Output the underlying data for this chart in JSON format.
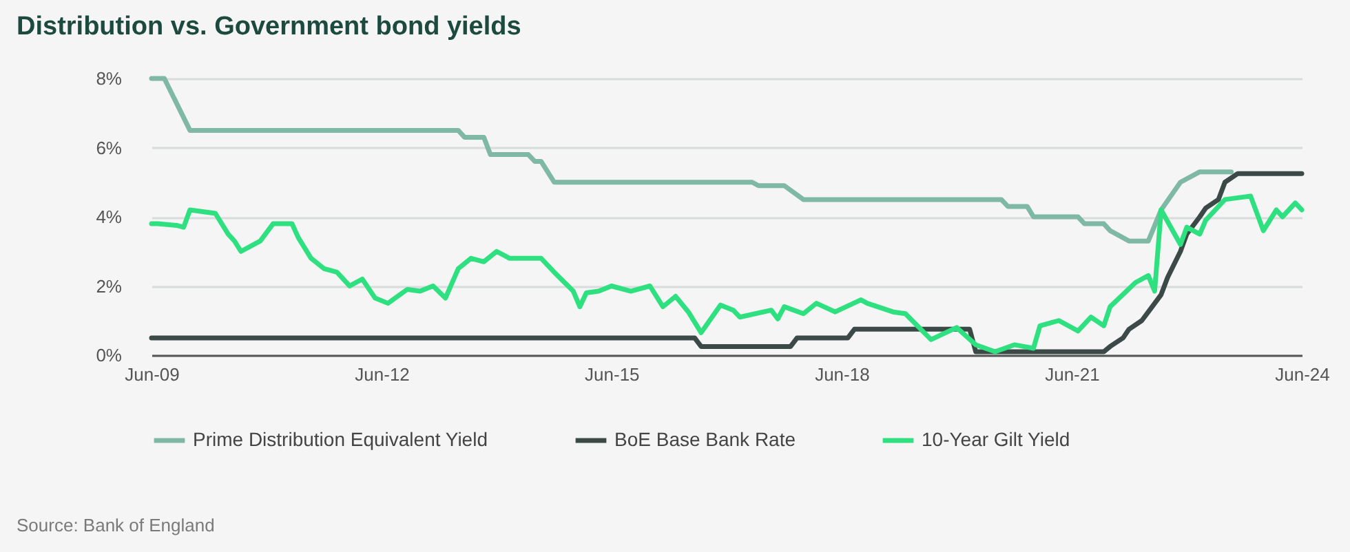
{
  "chart_data": {
    "type": "line",
    "title": "Distribution vs. Government bond yields",
    "annotations": [
      "Source: Bank of England"
    ],
    "xlim": [
      "2009-06",
      "2024-06"
    ],
    "xticks": [
      {
        "value": "2009-06",
        "label": "Jun-09"
      },
      {
        "value": "2012-06",
        "label": "Jun-12"
      },
      {
        "value": "2015-06",
        "label": "Jun-15"
      },
      {
        "value": "2018-06",
        "label": "Jun-18"
      },
      {
        "value": "2021-06",
        "label": "Jun-21"
      },
      {
        "value": "2024-06",
        "label": "Jun-24"
      }
    ],
    "ylim": [
      0,
      8
    ],
    "yticks": [
      {
        "value": 0,
        "label": "0%"
      },
      {
        "value": 2,
        "label": "2%"
      },
      {
        "value": 4,
        "label": "4%"
      },
      {
        "value": 6,
        "label": "6%"
      },
      {
        "value": 8,
        "label": "8%"
      }
    ],
    "grid": "y",
    "legend": "bottom",
    "line_style": "solid",
    "series": [
      {
        "name": "Prime Distribution Equivalent Yield",
        "color": "#7fb8a4",
        "x": [
          "2009-06",
          "2009-08",
          "2009-12",
          "2013-06",
          "2013-07",
          "2013-10",
          "2013-11",
          "2014-05",
          "2014-06",
          "2014-07",
          "2014-09",
          "2017-04",
          "2017-05",
          "2017-09",
          "2017-12",
          "2020-07",
          "2020-08",
          "2020-11",
          "2020-12",
          "2021-07",
          "2021-08",
          "2021-11",
          "2021-12",
          "2022-03",
          "2022-06",
          "2022-08",
          "2022-11",
          "2023-02",
          "2023-07"
        ],
        "values": [
          8.0,
          8.0,
          6.5,
          6.5,
          6.3,
          6.3,
          5.8,
          5.8,
          5.6,
          5.6,
          5.0,
          5.0,
          4.9,
          4.9,
          4.5,
          4.5,
          4.3,
          4.3,
          4.0,
          4.0,
          3.8,
          3.8,
          3.6,
          3.3,
          3.3,
          4.2,
          5.0,
          5.3,
          5.3
        ]
      },
      {
        "name": "BoE Base Bank Rate",
        "color": "#3c4a47",
        "x": [
          "2009-06",
          "2016-07",
          "2016-08",
          "2017-10",
          "2017-11",
          "2018-07",
          "2018-08",
          "2020-02",
          "2020-03",
          "2021-11",
          "2021-12",
          "2022-02",
          "2022-03",
          "2022-05",
          "2022-06",
          "2022-08",
          "2022-09",
          "2022-11",
          "2022-12",
          "2023-02",
          "2023-03",
          "2023-05",
          "2023-06",
          "2023-08",
          "2024-06"
        ],
        "values": [
          0.5,
          0.5,
          0.25,
          0.25,
          0.5,
          0.5,
          0.75,
          0.75,
          0.1,
          0.1,
          0.25,
          0.5,
          0.75,
          1.0,
          1.25,
          1.75,
          2.25,
          3.0,
          3.5,
          4.0,
          4.25,
          4.5,
          5.0,
          5.25,
          5.25
        ]
      },
      {
        "name": "10-Year Gilt Yield",
        "color": "#2ee07f",
        "x": [
          "2009-06",
          "2009-07",
          "2009-10",
          "2009-11",
          "2009-12",
          "2010-04",
          "2010-06",
          "2010-07",
          "2010-08",
          "2010-11",
          "2011-01",
          "2011-04",
          "2011-05",
          "2011-07",
          "2011-09",
          "2011-11",
          "2012-01",
          "2012-03",
          "2012-05",
          "2012-07",
          "2012-10",
          "2012-12",
          "2013-02",
          "2013-04",
          "2013-06",
          "2013-08",
          "2013-10",
          "2013-12",
          "2014-02",
          "2014-07",
          "2014-09",
          "2014-12",
          "2015-01",
          "2015-02",
          "2015-04",
          "2015-06",
          "2015-09",
          "2015-12",
          "2016-02",
          "2016-04",
          "2016-06",
          "2016-08",
          "2016-11",
          "2017-01",
          "2017-02",
          "2017-07",
          "2017-08",
          "2017-09",
          "2017-12",
          "2018-02",
          "2018-05",
          "2018-09",
          "2018-10",
          "2019-02",
          "2019-04",
          "2019-08",
          "2019-12",
          "2020-03",
          "2020-06",
          "2020-09",
          "2020-12",
          "2021-01",
          "2021-04",
          "2021-07",
          "2021-09",
          "2021-11",
          "2021-12",
          "2022-04",
          "2022-06",
          "2022-07",
          "2022-08",
          "2022-11",
          "2022-12",
          "2023-02",
          "2023-03",
          "2023-06",
          "2023-10",
          "2023-12",
          "2024-02",
          "2024-03",
          "2024-05",
          "2024-06"
        ],
        "values": [
          3.8,
          3.8,
          3.75,
          3.7,
          4.2,
          4.1,
          3.5,
          3.3,
          3.0,
          3.3,
          3.8,
          3.8,
          3.4,
          2.8,
          2.5,
          2.4,
          2.0,
          2.2,
          1.65,
          1.5,
          1.9,
          1.85,
          2.0,
          1.65,
          2.5,
          2.8,
          2.7,
          3.0,
          2.8,
          2.8,
          2.4,
          1.85,
          1.4,
          1.8,
          1.85,
          2.0,
          1.85,
          2.0,
          1.4,
          1.7,
          1.25,
          0.65,
          1.45,
          1.3,
          1.1,
          1.3,
          1.05,
          1.4,
          1.2,
          1.5,
          1.25,
          1.6,
          1.5,
          1.25,
          1.2,
          0.45,
          0.8,
          0.3,
          0.1,
          0.3,
          0.2,
          0.85,
          1.0,
          0.7,
          1.1,
          0.85,
          1.4,
          2.1,
          2.3,
          1.85,
          4.2,
          3.2,
          3.7,
          3.5,
          3.9,
          4.5,
          4.6,
          3.6,
          4.2,
          4.0,
          4.4,
          4.2
        ]
      }
    ]
  }
}
